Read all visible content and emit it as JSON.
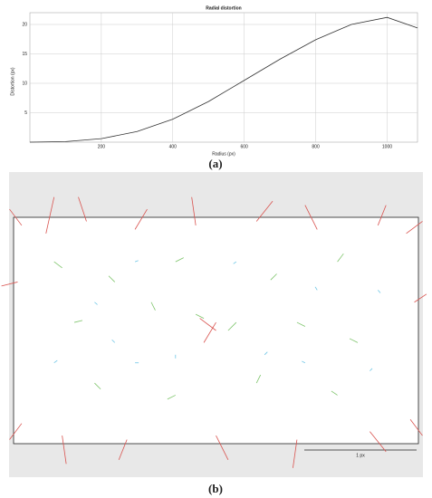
{
  "chart_data": [
    {
      "type": "line",
      "title": "Radial distortion",
      "caption": "(a)",
      "x_label": "Radius (px)",
      "y_label": "Distortion (px)",
      "x": [
        0,
        100,
        200,
        300,
        400,
        500,
        600,
        700,
        800,
        900,
        1000,
        1085
      ],
      "series": [
        {
          "color": "#333333",
          "values": [
            0,
            0.1,
            0.6,
            1.8,
            3.9,
            6.9,
            10.5,
            14.1,
            17.4,
            20.0,
            21.2,
            19.4
          ]
        }
      ],
      "xlim": [
        0,
        1085
      ],
      "ylim": [
        0,
        22
      ],
      "xticks": [
        200,
        400,
        600,
        800,
        1000
      ],
      "yticks": [
        5,
        10,
        15,
        20
      ],
      "grid": true
    },
    {
      "type": "quiver",
      "caption": "(b)",
      "scale_label": "1 px",
      "xlim": [
        0,
        100
      ],
      "ylim": [
        0,
        56
      ],
      "series": [
        {
          "color": "#d9534f",
          "x": [
            2,
            8,
            18,
            30,
            45,
            60,
            75,
            90,
            97,
            1,
            99,
            2,
            12,
            28,
            50,
            70,
            88,
            98,
            50,
            47
          ],
          "y": [
            54,
            52,
            55,
            53,
            54,
            55,
            53,
            54,
            52,
            40,
            35,
            5,
            2,
            1,
            2,
            1,
            3,
            6,
            28,
            25
          ],
          "u": [
            -3,
            2,
            -2,
            3,
            -1,
            4,
            -3,
            2,
            4,
            -4,
            3,
            -3,
            1,
            -2,
            3,
            -1,
            4,
            3,
            -4,
            3
          ],
          "v": [
            4,
            9,
            6,
            5,
            7,
            5,
            6,
            5,
            3,
            -1,
            2,
            -4,
            -7,
            -5,
            -6,
            -7,
            -5,
            -4,
            3,
            5
          ]
        },
        {
          "color": "#7dc46a",
          "x": [
            10,
            25,
            40,
            65,
            80,
            15,
            35,
            70,
            85,
            20,
            40,
            60,
            80,
            55,
            45
          ],
          "y": [
            45,
            40,
            45,
            42,
            45,
            30,
            33,
            30,
            25,
            15,
            12,
            15,
            12,
            30,
            32
          ],
          "u": [
            2,
            -1.5,
            2,
            -1.5,
            1.5,
            2,
            -1,
            2,
            -2,
            1.5,
            -2,
            1,
            -1.5,
            -2,
            2
          ],
          "v": [
            -1.5,
            1.5,
            1,
            -1.5,
            2,
            0.5,
            2,
            -1,
            1,
            -1.5,
            -1,
            2,
            1,
            -2,
            -1
          ]
        },
        {
          "color": "#6ec6e6",
          "x": [
            10,
            25,
            30,
            40,
            62,
            72,
            90,
            20,
            75,
            30,
            55,
            88
          ],
          "y": [
            20,
            25,
            20,
            22,
            22,
            20,
            38,
            35,
            38,
            45,
            45,
            18
          ],
          "u": [
            0.8,
            -0.7,
            0.9,
            0,
            0.7,
            -0.8,
            0.6,
            0.7,
            -0.5,
            0.8,
            -0.7,
            0.6
          ],
          "v": [
            0.6,
            0.7,
            0,
            -0.9,
            0.7,
            0.4,
            -0.7,
            -0.6,
            0.8,
            0.3,
            -0.5,
            0.6
          ]
        }
      ]
    }
  ]
}
